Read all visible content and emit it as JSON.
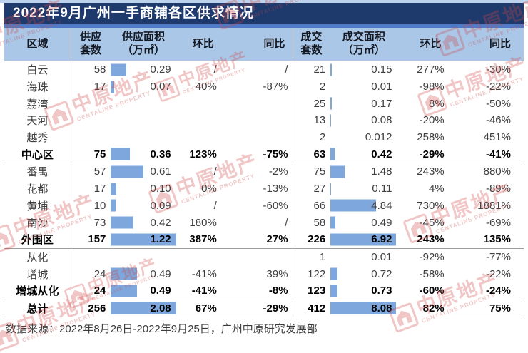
{
  "title": "2022年9月广州一手商铺各区供求情况",
  "source_note": "数据来源：2022年8月26日-2022年9月25日，广州中原研究发展部",
  "watermark": {
    "logo": "centaline-logo",
    "text": "中原地产",
    "subtext": "CENTALINE PROPERTY"
  },
  "colors": {
    "title_bg": "#1e3a6d",
    "accent_strip": "#4d7cc5",
    "header_bg": "#aac7e8",
    "data_bar": "#7da7dd",
    "watermark_red": "#cf4646"
  },
  "chart_data": {
    "type": "table",
    "title": "2022年9月广州一手商铺各区供求情况",
    "header_lines": [
      [
        "区域"
      ],
      [
        "供应",
        "套数"
      ],
      [
        "供应面积",
        "（万㎡）"
      ],
      [
        "环比"
      ],
      [
        "同比"
      ],
      [
        "成交",
        "套数"
      ],
      [
        "成交面积",
        "（万㎡）"
      ],
      [
        "环比"
      ],
      [
        "同比"
      ]
    ],
    "rows": [
      {
        "region": "白云",
        "bold": false,
        "separator_below": false,
        "values": [
          "58",
          "0.29",
          "/",
          "/",
          "21",
          "0.15",
          "277%",
          "-30%"
        ]
      },
      {
        "region": "海珠",
        "bold": false,
        "separator_below": false,
        "values": [
          "17",
          "0.07",
          "40%",
          "-87%",
          "2",
          "0.01",
          "-98%",
          "-22%"
        ]
      },
      {
        "region": "荔湾",
        "bold": false,
        "separator_below": false,
        "values": [
          "",
          "",
          "",
          "",
          "25",
          "0.17",
          "8%",
          "-50%"
        ]
      },
      {
        "region": "天河",
        "bold": false,
        "separator_below": false,
        "values": [
          "",
          "",
          "",
          "",
          "13",
          "0.08",
          "-20%",
          "-46%"
        ]
      },
      {
        "region": "越秀",
        "bold": false,
        "separator_below": false,
        "values": [
          "",
          "",
          "",
          "",
          "2",
          "0.012",
          "258%",
          "451%"
        ]
      },
      {
        "region": "中心区",
        "bold": true,
        "separator_below": true,
        "values": [
          "75",
          "0.36",
          "123%",
          "-75%",
          "63",
          "0.42",
          "-29%",
          "-41%"
        ]
      },
      {
        "region": "番禺",
        "bold": false,
        "separator_below": false,
        "values": [
          "57",
          "0.61",
          "/",
          "-2%",
          "75",
          "1.48",
          "243%",
          "880%"
        ]
      },
      {
        "region": "花都",
        "bold": false,
        "separator_below": false,
        "values": [
          "17",
          "0.10",
          "0%",
          "-13%",
          "27",
          "0.11",
          "4%",
          "-89%"
        ]
      },
      {
        "region": "黄埔",
        "bold": false,
        "separator_below": false,
        "values": [
          "10",
          "0.09",
          "/",
          "-60%",
          "66",
          "4.84",
          "730%",
          "1881%"
        ]
      },
      {
        "region": "南沙",
        "bold": false,
        "separator_below": false,
        "values": [
          "73",
          "0.42",
          "180%",
          "/",
          "58",
          "0.49",
          "-45%",
          "-69%"
        ]
      },
      {
        "region": "外围区",
        "bold": true,
        "separator_below": true,
        "values": [
          "157",
          "1.22",
          "387%",
          "27%",
          "226",
          "6.92",
          "243%",
          "135%"
        ]
      },
      {
        "region": "从化",
        "bold": false,
        "separator_below": false,
        "values": [
          "",
          "",
          "",
          "",
          "1",
          "0.01",
          "-92%",
          "-77%"
        ]
      },
      {
        "region": "增城",
        "bold": false,
        "separator_below": false,
        "values": [
          "24",
          "0.49",
          "-41%",
          "39%",
          "122",
          "0.72",
          "-58%",
          "-22%"
        ]
      },
      {
        "region": "增城从化",
        "bold": true,
        "separator_below": true,
        "values": [
          "24",
          "0.49",
          "-41%",
          "-8%",
          "123",
          "0.73",
          "-60%",
          "-24%"
        ]
      },
      {
        "region": "总计",
        "bold": true,
        "separator_below": true,
        "values": [
          "256",
          "2.08",
          "67%",
          "-29%",
          "412",
          "8.08",
          "82%",
          "75%"
        ]
      }
    ],
    "area_bar_scale": {
      "supply_area_full_bar": 1.22,
      "transaction_area_full_bar": 6.92
    }
  }
}
